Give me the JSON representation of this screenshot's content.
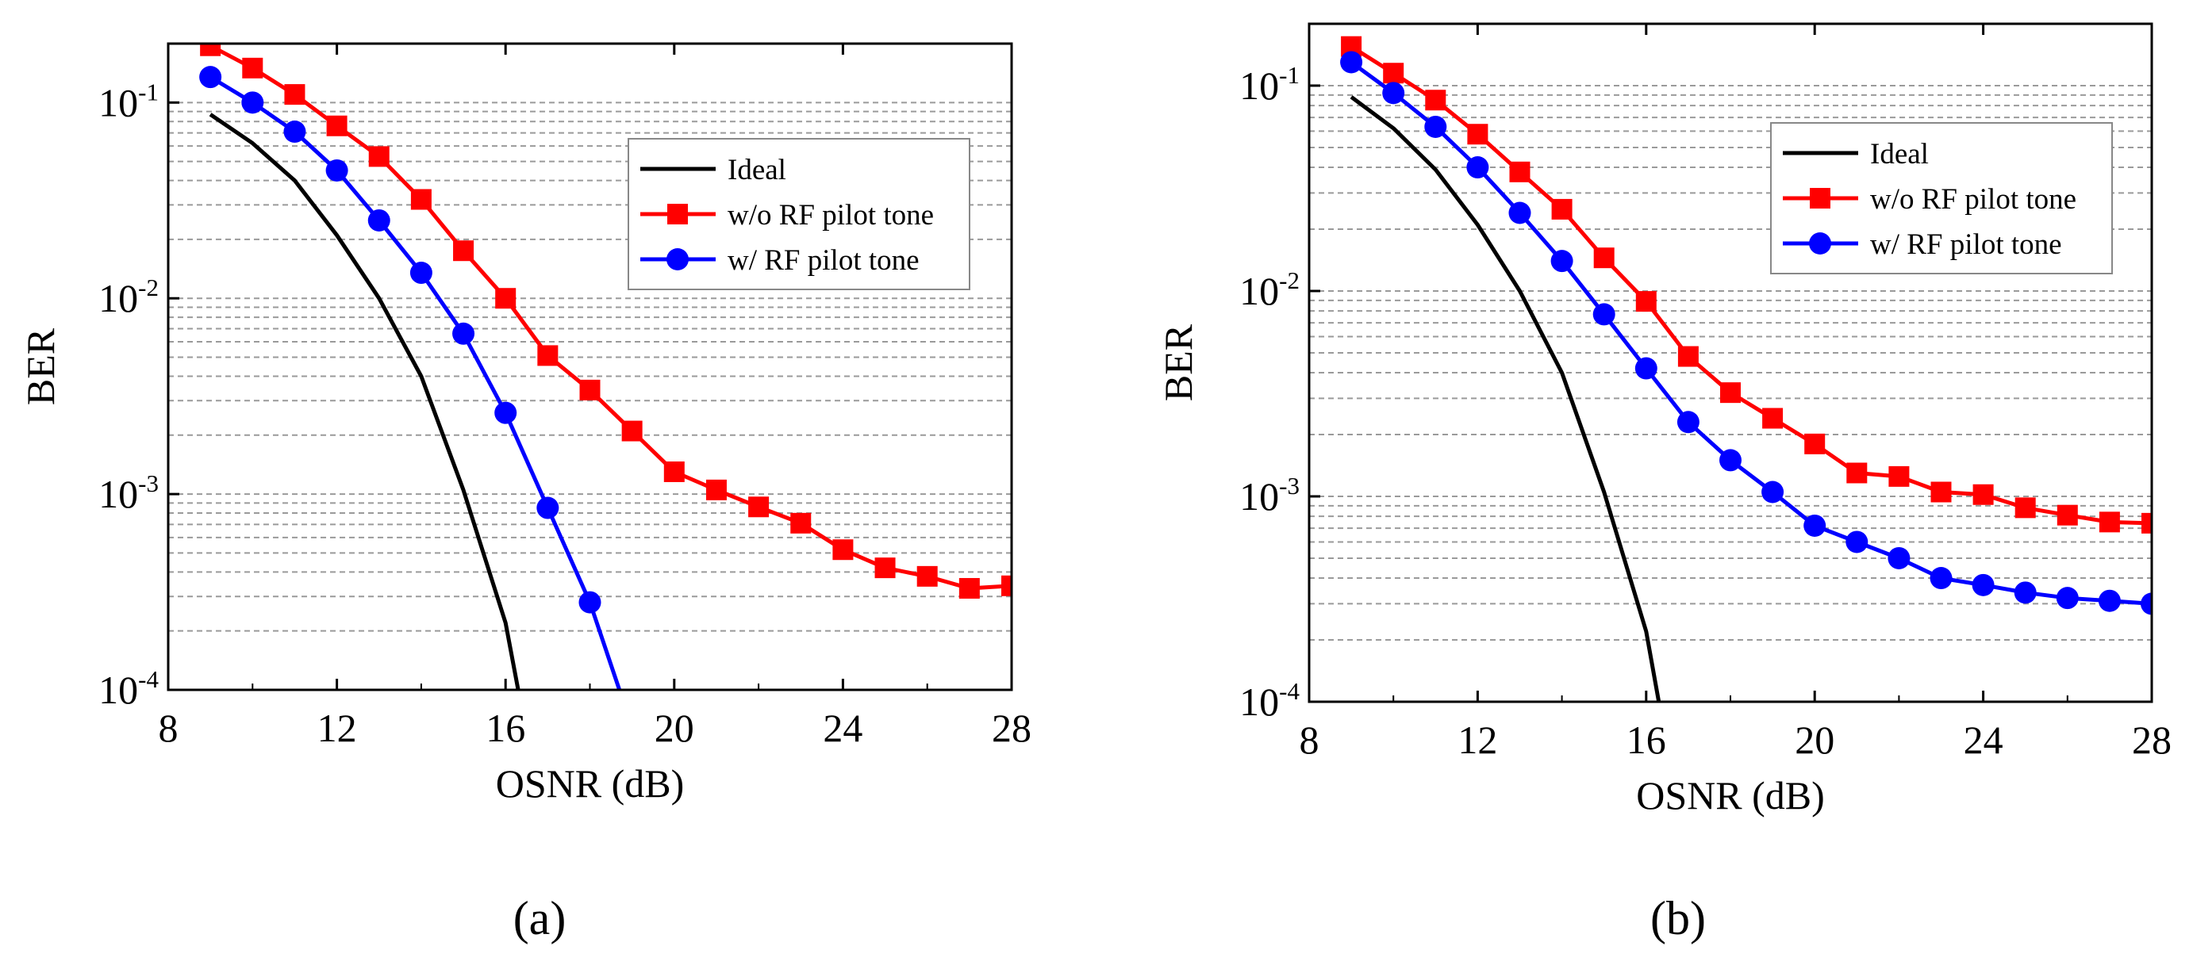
{
  "chart_data": [
    {
      "type": "line",
      "caption": "(a)",
      "xlabel": "OSNR (dB)",
      "ylabel": "BER",
      "xlim": [
        8,
        28
      ],
      "ylim": [
        0.0001,
        0.2
      ],
      "yscale": "log",
      "xticks": [
        8,
        12,
        16,
        20,
        24,
        28
      ],
      "yticks": [
        {
          "base": "10",
          "exp": "-1",
          "value": 0.1
        },
        {
          "base": "10",
          "exp": "-2",
          "value": 0.01
        },
        {
          "base": "10",
          "exp": "-3",
          "value": 0.001
        },
        {
          "base": "10",
          "exp": "-4",
          "value": 0.0001
        }
      ],
      "grid": true,
      "legend_position": "top-right",
      "series": [
        {
          "name": "Ideal",
          "color": "#000000",
          "marker": "none",
          "x": [
            9,
            10,
            11,
            12,
            13,
            14,
            15,
            15.5,
            16,
            16.3
          ],
          "values": [
            0.087,
            0.062,
            0.04,
            0.021,
            0.01,
            0.004,
            0.00105,
            0.00048,
            0.00022,
            0.0001
          ]
        },
        {
          "name": "w/o RF pilot tone",
          "color": "#ff0000",
          "marker": "square",
          "x": [
            9,
            10,
            11,
            12,
            13,
            14,
            15,
            16,
            17,
            18,
            19,
            20,
            21,
            22,
            23,
            24,
            25,
            26,
            27,
            28
          ],
          "values": [
            0.195,
            0.15,
            0.11,
            0.076,
            0.053,
            0.032,
            0.0175,
            0.01,
            0.0051,
            0.0034,
            0.0021,
            0.0013,
            0.00105,
            0.00086,
            0.00071,
            0.00052,
            0.00042,
            0.00038,
            0.00033,
            0.00034
          ]
        },
        {
          "name": "w/ RF pilot tone",
          "color": "#0000ff",
          "marker": "circle",
          "x": [
            9,
            10,
            11,
            12,
            13,
            14,
            15,
            16,
            17,
            18,
            18.7
          ],
          "values": [
            0.135,
            0.1,
            0.071,
            0.045,
            0.025,
            0.0135,
            0.0066,
            0.0026,
            0.00085,
            0.00028,
            0.0001
          ]
        }
      ]
    },
    {
      "type": "line",
      "caption": "(b)",
      "xlabel": "OSNR (dB)",
      "ylabel": "BER",
      "xlim": [
        8,
        28
      ],
      "ylim": [
        0.0001,
        0.2
      ],
      "yscale": "log",
      "xticks": [
        8,
        12,
        16,
        20,
        24,
        28
      ],
      "yticks": [
        {
          "base": "10",
          "exp": "-1",
          "value": 0.1
        },
        {
          "base": "10",
          "exp": "-2",
          "value": 0.01
        },
        {
          "base": "10",
          "exp": "-3",
          "value": 0.001
        },
        {
          "base": "10",
          "exp": "-4",
          "value": 0.0001
        }
      ],
      "grid": true,
      "legend_position": "top-right",
      "series": [
        {
          "name": "Ideal",
          "color": "#000000",
          "marker": "none",
          "x": [
            9,
            10,
            11,
            12,
            13,
            14,
            15,
            15.5,
            16,
            16.3
          ],
          "values": [
            0.088,
            0.062,
            0.039,
            0.021,
            0.01,
            0.004,
            0.00105,
            0.00048,
            0.00022,
            0.0001
          ]
        },
        {
          "name": "w/o RF pilot tone",
          "color": "#ff0000",
          "marker": "square",
          "x": [
            9,
            10,
            11,
            12,
            13,
            14,
            15,
            16,
            17,
            18,
            19,
            20,
            21,
            22,
            23,
            24,
            25,
            26,
            27,
            28
          ],
          "values": [
            0.155,
            0.115,
            0.085,
            0.058,
            0.038,
            0.025,
            0.0145,
            0.0089,
            0.0048,
            0.0032,
            0.0024,
            0.0018,
            0.0013,
            0.00125,
            0.00105,
            0.00102,
            0.00088,
            0.00081,
            0.00075,
            0.00074
          ]
        },
        {
          "name": "w/ RF pilot tone",
          "color": "#0000ff",
          "marker": "circle",
          "x": [
            9,
            10,
            11,
            12,
            13,
            14,
            15,
            16,
            17,
            18,
            19,
            20,
            21,
            22,
            23,
            24,
            25,
            26,
            27,
            28
          ],
          "values": [
            0.13,
            0.092,
            0.063,
            0.04,
            0.024,
            0.014,
            0.0077,
            0.0042,
            0.0023,
            0.0015,
            0.00105,
            0.00072,
            0.0006,
            0.0005,
            0.0004,
            0.00037,
            0.00034,
            0.00032,
            0.00031,
            0.0003
          ]
        }
      ]
    }
  ]
}
